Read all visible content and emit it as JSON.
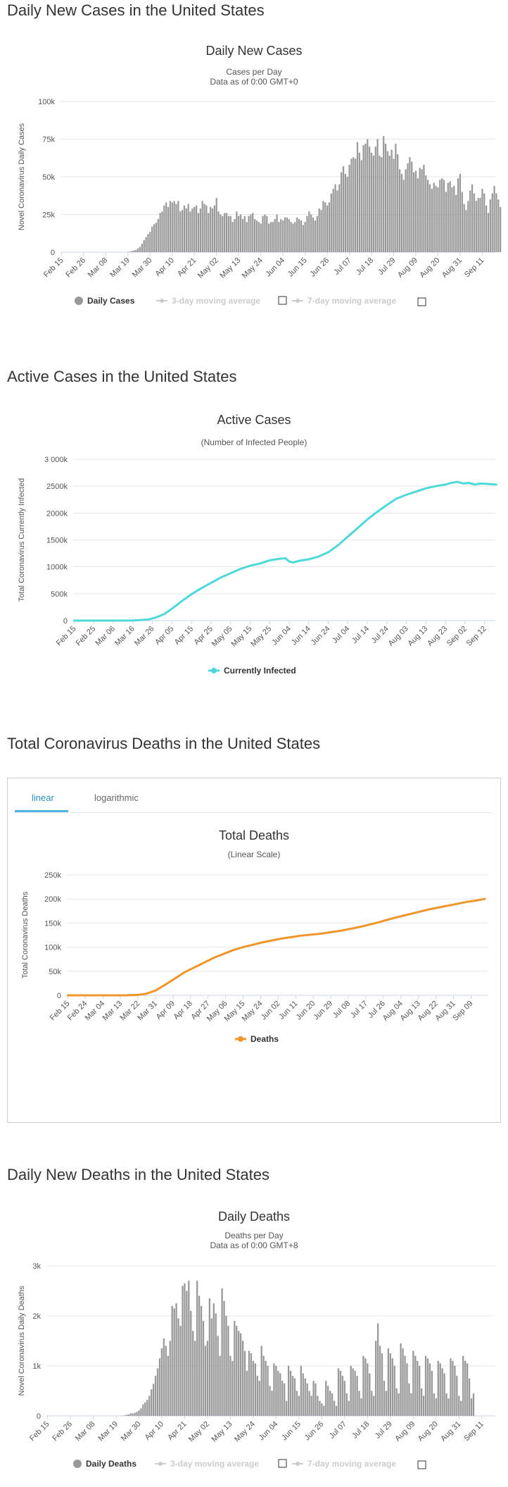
{
  "sections": {
    "daily_cases": "Daily New Cases in the United States",
    "active_cases": "Active Cases in the United States",
    "total_deaths": "Total Coronavirus Deaths in the United States",
    "daily_deaths": "Daily New Deaths in the United States"
  },
  "tabs": {
    "linear": "linear",
    "log": "logarithmic"
  },
  "colors": {
    "bar": "#999999",
    "active_line": "#4dd9d9",
    "deaths_line": "#f0952a",
    "grid": "#e6e6e6",
    "tab_active": "#4fb4e8"
  },
  "chart_data": [
    {
      "id": "daily_cases",
      "type": "bar",
      "title": "Daily New Cases",
      "subtitle": "Cases per Day",
      "subtitle2": "Data as of 0:00 GMT+0",
      "ylabel": "Novel Coronavirus Daily Cases",
      "ylim": [
        0,
        100000
      ],
      "yticks": [
        "0",
        "25k",
        "50k",
        "75k",
        "100k"
      ],
      "start": "Feb 15",
      "xticks": [
        "Feb 15",
        "Feb 26",
        "Mar 08",
        "Mar 19",
        "Mar 30",
        "Apr 10",
        "Apr 21",
        "May 02",
        "May 13",
        "May 24",
        "Jun 04",
        "Jun 15",
        "Jun 26",
        "Jul 07",
        "Jul 18",
        "Jul 29",
        "Aug 09",
        "Aug 20",
        "Aug 31",
        "Sep 11"
      ],
      "tick_step": 11,
      "legend": [
        "Daily Cases",
        "3-day moving average",
        "7-day moving average"
      ],
      "values": [
        0,
        0,
        0,
        0,
        0,
        0,
        0,
        0,
        0,
        0,
        0,
        0,
        0,
        0,
        0,
        0,
        0,
        0,
        0,
        0,
        0,
        0,
        0,
        0,
        0,
        0,
        0,
        0,
        0,
        0,
        0,
        0,
        0,
        200,
        400,
        800,
        1200,
        1500,
        2500,
        3500,
        5500,
        8000,
        10000,
        12000,
        13500,
        17000,
        18500,
        19500,
        22000,
        26000,
        27000,
        31000,
        33000,
        30000,
        34000,
        33000,
        34000,
        32000,
        34000,
        27000,
        28000,
        31000,
        29000,
        32000,
        27000,
        29000,
        30000,
        31000,
        26000,
        29000,
        34000,
        32000,
        31000,
        26000,
        30000,
        29000,
        31000,
        36000,
        27000,
        25000,
        24000,
        26000,
        26000,
        24000,
        24000,
        20000,
        22000,
        27000,
        24000,
        25000,
        22000,
        24000,
        20000,
        24000,
        25000,
        26000,
        22000,
        21000,
        20000,
        19000,
        24000,
        25000,
        24000,
        19000,
        20000,
        20000,
        22000,
        25000,
        20000,
        22000,
        21000,
        23000,
        23000,
        22000,
        20000,
        19000,
        20000,
        23000,
        22000,
        21000,
        18000,
        20000,
        24000,
        27000,
        25000,
        23000,
        21000,
        24000,
        29000,
        28000,
        34000,
        33000,
        31000,
        33000,
        39000,
        42000,
        45000,
        41000,
        45000,
        53000,
        57000,
        52000,
        50000,
        58000,
        62000,
        63000,
        62000,
        73000,
        66000,
        61000,
        71000,
        72000,
        75000,
        70000,
        66000,
        64000,
        70000,
        75000,
        64000,
        63000,
        77000,
        72000,
        67000,
        64000,
        68000,
        62000,
        72000,
        65000,
        55000,
        52000,
        48000,
        55000,
        59000,
        63000,
        60000,
        53000,
        54000,
        49000,
        56000,
        55000,
        58000,
        51000,
        48000,
        45000,
        42000,
        46000,
        44000,
        43000,
        48000,
        49000,
        48000,
        40000,
        46000,
        47000,
        43000,
        44000,
        38000,
        49000,
        52000,
        40000,
        32000,
        28000,
        34000,
        41000,
        45000,
        39000,
        34000,
        36000,
        36000,
        42000,
        39000,
        31000,
        26000,
        35000,
        39000,
        44000,
        39000,
        35000,
        30000
      ]
    },
    {
      "id": "active_cases",
      "type": "line",
      "title": "Active Cases",
      "subtitle": "(Number of Infected People)",
      "ylabel": "Total Coronavirus Currently Infected",
      "ylim": [
        0,
        3000000
      ],
      "yticks": [
        "0",
        "500k",
        "1000k",
        "1500k",
        "2000k",
        "2500k",
        "3 000k"
      ],
      "start": "Feb 15",
      "xticks": [
        "Feb 15",
        "Feb 25",
        "Mar 06",
        "Mar 16",
        "Mar 26",
        "Apr 05",
        "Apr 15",
        "Apr 25",
        "May 05",
        "May 15",
        "May 25",
        "Jun 04",
        "Jun 14",
        "Jun 24",
        "Jul 04",
        "Jul 14",
        "Jul 24",
        "Aug 03",
        "Aug 13",
        "Aug 23",
        "Sep 02",
        "Sep 12"
      ],
      "tick_step": 10,
      "legend": [
        "Currently Infected"
      ],
      "x": [
        0,
        20,
        30,
        38,
        42,
        46,
        50,
        55,
        60,
        65,
        70,
        75,
        80,
        85,
        90,
        95,
        100,
        105,
        108,
        110,
        112,
        115,
        120,
        125,
        130,
        135,
        140,
        145,
        150,
        155,
        160,
        165,
        170,
        175,
        180,
        185,
        190,
        193,
        196,
        199,
        202,
        205,
        208,
        212,
        216
      ],
      "values": [
        0,
        0,
        2000,
        20000,
        60000,
        120000,
        220000,
        360000,
        490000,
        600000,
        700000,
        800000,
        880000,
        960000,
        1020000,
        1060000,
        1120000,
        1150000,
        1160000,
        1100000,
        1080000,
        1110000,
        1140000,
        1190000,
        1270000,
        1400000,
        1560000,
        1720000,
        1880000,
        2020000,
        2150000,
        2270000,
        2340000,
        2400000,
        2460000,
        2500000,
        2530000,
        2560000,
        2580000,
        2550000,
        2560000,
        2530000,
        2550000,
        2540000,
        2530000
      ]
    },
    {
      "id": "total_deaths",
      "type": "line",
      "title": "Total Deaths",
      "subtitle": "(Linear Scale)",
      "ylabel": "Total Coronavirus Deaths",
      "ylim": [
        0,
        250000
      ],
      "yticks": [
        "0",
        "50k",
        "100k",
        "150k",
        "200k",
        "250k"
      ],
      "start": "Feb 15",
      "xticks": [
        "Feb 15",
        "Feb 24",
        "Mar 04",
        "Mar 13",
        "Mar 22",
        "Mar 31",
        "Apr 09",
        "Apr 18",
        "Apr 27",
        "May 06",
        "May 15",
        "May 24",
        "Jun 02",
        "Jun 11",
        "Jun 20",
        "Jun 29",
        "Jul 08",
        "Jul 17",
        "Jul 26",
        "Aug 04",
        "Aug 13",
        "Aug 22",
        "Aug 31",
        "Sep 09"
      ],
      "tick_step": 9,
      "legend": [
        "Deaths"
      ],
      "x": [
        0,
        30,
        36,
        40,
        45,
        50,
        55,
        60,
        65,
        70,
        75,
        80,
        85,
        90,
        95,
        100,
        105,
        110,
        115,
        120,
        125,
        130,
        135,
        140,
        145,
        150,
        155,
        160,
        165,
        170,
        175,
        180,
        185,
        190,
        195,
        200,
        205,
        210,
        214
      ],
      "values": [
        0,
        0,
        1000,
        3000,
        10000,
        22000,
        35000,
        48000,
        58000,
        68000,
        78000,
        86000,
        94000,
        100000,
        105000,
        110000,
        114000,
        118000,
        121000,
        124000,
        126000,
        128000,
        131000,
        134000,
        138000,
        142000,
        147000,
        152000,
        158000,
        163000,
        168000,
        173000,
        178000,
        182000,
        186000,
        190000,
        194000,
        197000,
        200000
      ]
    },
    {
      "id": "daily_deaths",
      "type": "bar",
      "title": "Daily Deaths",
      "subtitle": "Deaths per Day",
      "subtitle2": "Data as of 0:00 GMT+8",
      "ylabel": "Novel Coronavirus Daily Deaths",
      "ylim": [
        0,
        3000
      ],
      "yticks": [
        "0",
        "1k",
        "2k",
        "3k"
      ],
      "start": "Feb 15",
      "xticks": [
        "Feb 15",
        "Feb 26",
        "Mar 08",
        "Mar 19",
        "Mar 30",
        "Apr 10",
        "Apr 21",
        "May 02",
        "May 13",
        "May 24",
        "Jun 04",
        "Jun 15",
        "Jun 26",
        "Jul 07",
        "Jul 18",
        "Jul 29",
        "Aug 09",
        "Aug 20",
        "Aug 31",
        "Sep 11"
      ],
      "tick_step": 11,
      "legend": [
        "Daily Deaths",
        "3-day moving average",
        "7-day moving average"
      ],
      "values": [
        0,
        0,
        0,
        0,
        0,
        0,
        0,
        0,
        0,
        0,
        0,
        0,
        0,
        0,
        0,
        0,
        0,
        0,
        0,
        0,
        0,
        0,
        0,
        0,
        0,
        0,
        0,
        0,
        0,
        0,
        0,
        0,
        0,
        0,
        0,
        0,
        0,
        10,
        20,
        30,
        50,
        50,
        60,
        80,
        110,
        150,
        230,
        270,
        320,
        400,
        530,
        640,
        800,
        950,
        1150,
        1350,
        1550,
        1400,
        1200,
        1500,
        2200,
        2150,
        2250,
        1950,
        1800,
        2600,
        2650,
        2500,
        2700,
        2100,
        1700,
        1500,
        2700,
        2400,
        2200,
        1900,
        1400,
        1500,
        2350,
        1950,
        2250,
        2050,
        1600,
        1200,
        2550,
        2300,
        2000,
        1800,
        1200,
        1100,
        1900,
        1800,
        1700,
        1650,
        1500,
        1300,
        900,
        1300,
        1250,
        1100,
        1050,
        800,
        700,
        1400,
        1200,
        1100,
        1000,
        600,
        500,
        1050,
        1000,
        900,
        850,
        700,
        650,
        300,
        1000,
        900,
        800,
        750,
        500,
        400,
        1000,
        850,
        750,
        650,
        500,
        400,
        700,
        650,
        400,
        300,
        250,
        200,
        700,
        600,
        500,
        450,
        300,
        200,
        950,
        900,
        800,
        700,
        450,
        300,
        1000,
        950,
        900,
        800,
        500,
        350,
        1200,
        1150,
        1050,
        850,
        500,
        400,
        1500,
        1850,
        1400,
        1250,
        700,
        500,
        1350,
        1250,
        1150,
        1000,
        550,
        450,
        1450,
        1350,
        1200,
        1050,
        650,
        450,
        1300,
        1200,
        1100,
        1000,
        550,
        400,
        1200,
        1150,
        1050,
        900,
        450,
        350,
        1100,
        1050,
        950,
        850,
        450,
        350,
        1150,
        1100,
        1000,
        800,
        400,
        300,
        1200,
        1100,
        1050,
        750,
        350,
        450
      ]
    }
  ]
}
